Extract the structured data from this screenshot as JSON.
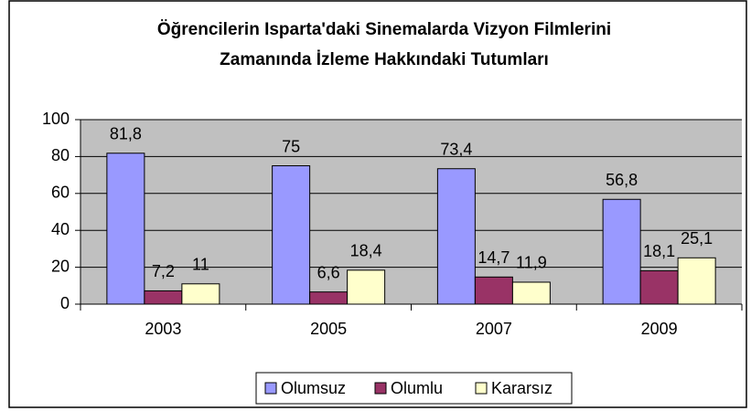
{
  "chart_data": {
    "type": "bar",
    "title": [
      "Öğrencilerin Isparta'daki Sinemalarda Vizyon Filmlerini",
      "Zamanında İzleme Hakkındaki Tutumları"
    ],
    "categories": [
      "2003",
      "2005",
      "2007",
      "2009"
    ],
    "series": [
      {
        "name": "Olumsuz",
        "color": "#9999ff",
        "values": [
          81.8,
          75,
          73.4,
          56.8
        ],
        "value_labels": [
          "81,8",
          "75",
          "73,4",
          "56,8"
        ]
      },
      {
        "name": "Olumlu",
        "color": "#993366",
        "values": [
          7.2,
          6.6,
          14.7,
          18.1
        ],
        "value_labels": [
          "7,2",
          "6,6",
          "14,7",
          "18,1"
        ]
      },
      {
        "name": "Kararsız",
        "color": "#ffffcc",
        "values": [
          11,
          18.4,
          11.9,
          25.1
        ],
        "value_labels": [
          "11",
          "18,4",
          "11,9",
          "25,1"
        ]
      }
    ],
    "ylim": [
      0,
      100
    ],
    "yticks": [
      0,
      20,
      40,
      60,
      80,
      100
    ],
    "grid": true,
    "legend": "bottom"
  }
}
